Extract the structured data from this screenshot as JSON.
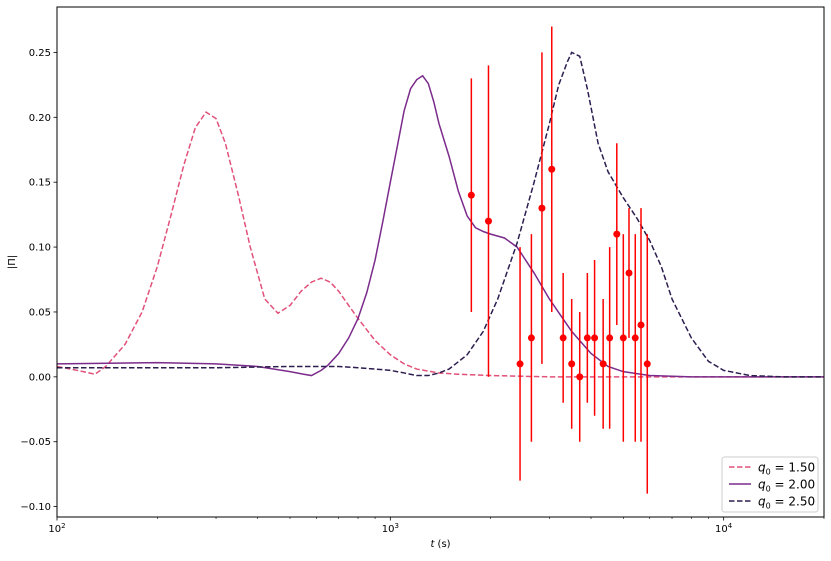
{
  "chart_data": {
    "type": "line",
    "title": "",
    "xlabel": "t (s)",
    "ylabel": "|Π|",
    "xscale": "log",
    "xlim": [
      100,
      20000
    ],
    "ylim": [
      -0.108,
      0.285
    ],
    "grid": false,
    "legend_position": "bottom-right",
    "x_ticks": [
      {
        "value": 100,
        "base": "10",
        "exp": "2"
      },
      {
        "value": 1000,
        "base": "10",
        "exp": "3"
      },
      {
        "value": 10000,
        "base": "10",
        "exp": "4"
      }
    ],
    "y_ticks": [
      {
        "value": -0.1,
        "label": "−0.10"
      },
      {
        "value": -0.05,
        "label": "−0.05"
      },
      {
        "value": 0.0,
        "label": "0.00"
      },
      {
        "value": 0.05,
        "label": "0.05"
      },
      {
        "value": 0.1,
        "label": "0.10"
      },
      {
        "value": 0.15,
        "label": "0.15"
      },
      {
        "value": 0.2,
        "label": "0.20"
      },
      {
        "value": 0.25,
        "label": "0.25"
      }
    ],
    "series": [
      {
        "name_main": "q",
        "name_sub": "0",
        "name_value": " = 1.50",
        "color": "#e2517a",
        "dash": "dashed",
        "x": [
          100,
          110,
          120,
          130,
          140,
          160,
          180,
          200,
          220,
          240,
          260,
          280,
          300,
          320,
          350,
          380,
          420,
          460,
          500,
          540,
          580,
          620,
          660,
          700,
          750,
          800,
          900,
          1000,
          1100,
          1200,
          1400,
          1600,
          2000,
          3000,
          5000,
          10000,
          20000
        ],
        "y": [
          0.008,
          0.006,
          0.004,
          0.002,
          0.008,
          0.025,
          0.05,
          0.085,
          0.125,
          0.163,
          0.192,
          0.204,
          0.199,
          0.18,
          0.14,
          0.1,
          0.06,
          0.049,
          0.055,
          0.066,
          0.073,
          0.076,
          0.073,
          0.066,
          0.055,
          0.045,
          0.028,
          0.017,
          0.01,
          0.006,
          0.003,
          0.002,
          0.001,
          0.0,
          0.0,
          0.0,
          0.0
        ]
      },
      {
        "name_main": "q",
        "name_sub": "0",
        "name_value": " = 2.00",
        "color": "#7b2b8b",
        "dash": "solid",
        "x": [
          100,
          200,
          300,
          400,
          500,
          550,
          580,
          620,
          650,
          700,
          750,
          800,
          850,
          900,
          950,
          1000,
          1050,
          1100,
          1150,
          1200,
          1250,
          1300,
          1350,
          1400,
          1500,
          1600,
          1700,
          1800,
          1900,
          2000,
          2200,
          2400,
          2700,
          3000,
          3500,
          4000,
          4500,
          5000,
          6000,
          8000,
          10000,
          20000
        ],
        "y": [
          0.01,
          0.011,
          0.01,
          0.008,
          0.004,
          0.002,
          0.001,
          0.005,
          0.009,
          0.018,
          0.03,
          0.045,
          0.065,
          0.09,
          0.12,
          0.15,
          0.178,
          0.205,
          0.222,
          0.229,
          0.232,
          0.226,
          0.212,
          0.195,
          0.17,
          0.143,
          0.124,
          0.115,
          0.112,
          0.11,
          0.107,
          0.1,
          0.08,
          0.06,
          0.035,
          0.018,
          0.008,
          0.004,
          0.001,
          0.0,
          0.0,
          0.0
        ]
      },
      {
        "name_main": "q",
        "name_sub": "0",
        "name_value": " = 2.50",
        "color": "#2d1e4f",
        "dash": "dashed",
        "x": [
          100,
          300,
          500,
          700,
          800,
          900,
          1000,
          1100,
          1200,
          1300,
          1400,
          1500,
          1700,
          1900,
          2100,
          2400,
          2700,
          3000,
          3200,
          3400,
          3500,
          3700,
          3900,
          4200,
          4500,
          5000,
          5500,
          6000,
          6500,
          7000,
          8000,
          9000,
          10000,
          12000,
          15000,
          20000
        ],
        "y": [
          0.007,
          0.007,
          0.008,
          0.008,
          0.007,
          0.006,
          0.005,
          0.003,
          0.001,
          0.001,
          0.003,
          0.006,
          0.017,
          0.035,
          0.06,
          0.103,
          0.15,
          0.195,
          0.225,
          0.243,
          0.25,
          0.247,
          0.222,
          0.18,
          0.158,
          0.138,
          0.122,
          0.105,
          0.085,
          0.06,
          0.03,
          0.012,
          0.005,
          0.001,
          0.0,
          0.0
        ]
      }
    ],
    "error_points": {
      "color": "#ff0000",
      "points": [
        {
          "x": 1750,
          "y": 0.14,
          "err": 0.09
        },
        {
          "x": 1970,
          "y": 0.12,
          "err": 0.12
        },
        {
          "x": 2450,
          "y": 0.01,
          "err": 0.09
        },
        {
          "x": 2650,
          "y": 0.03,
          "err": 0.08
        },
        {
          "x": 2850,
          "y": 0.13,
          "err": 0.12
        },
        {
          "x": 3050,
          "y": 0.16,
          "err": 0.11
        },
        {
          "x": 3300,
          "y": 0.03,
          "err": 0.05
        },
        {
          "x": 3500,
          "y": 0.01,
          "err": 0.05
        },
        {
          "x": 3700,
          "y": 0.0,
          "err": 0.05
        },
        {
          "x": 3900,
          "y": 0.03,
          "err": 0.05
        },
        {
          "x": 4100,
          "y": 0.03,
          "err": 0.06
        },
        {
          "x": 4350,
          "y": 0.01,
          "err": 0.05
        },
        {
          "x": 4550,
          "y": 0.03,
          "err": 0.07
        },
        {
          "x": 4780,
          "y": 0.11,
          "err": 0.07
        },
        {
          "x": 5000,
          "y": 0.03,
          "err": 0.08
        },
        {
          "x": 5200,
          "y": 0.08,
          "err": 0.05
        },
        {
          "x": 5430,
          "y": 0.03,
          "err": 0.08
        },
        {
          "x": 5650,
          "y": 0.04,
          "err": 0.09
        },
        {
          "x": 5900,
          "y": 0.01,
          "err": 0.1
        }
      ]
    }
  }
}
